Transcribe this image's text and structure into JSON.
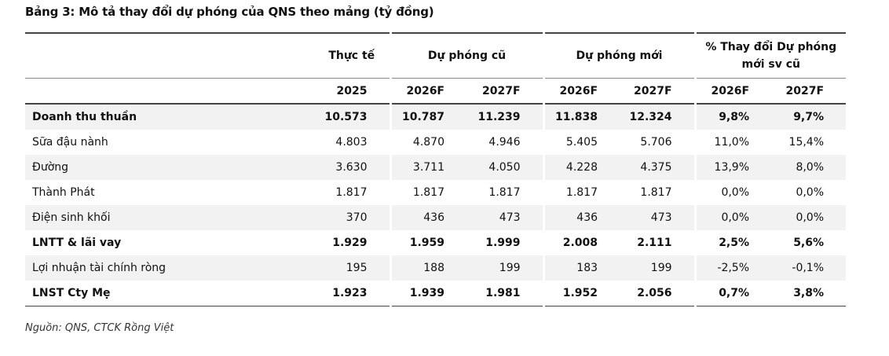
{
  "title": "Bảng 3: Mô tả thay đổi dự phóng của QNS theo mảng (tỷ đồng)",
  "table": {
    "groups": [
      "Thực tế",
      "Dự phóng cũ",
      "Dự phóng mới",
      "% Thay đổi Dự phóng mới sv cũ"
    ],
    "years": [
      "2025",
      "2026F",
      "2027F",
      "2026F",
      "2027F",
      "2026F",
      "2027F"
    ],
    "rows": [
      {
        "label": "Doanh thu thuần",
        "bold": true,
        "values": [
          "10.573",
          "10.787",
          "11.239",
          "11.838",
          "12.324",
          "9,8%",
          "9,7%"
        ]
      },
      {
        "label": "Sữa đậu nành",
        "bold": false,
        "values": [
          "4.803",
          "4.870",
          "4.946",
          "5.405",
          "5.706",
          "11,0%",
          "15,4%"
        ]
      },
      {
        "label": "Đường",
        "bold": false,
        "values": [
          "3.630",
          "3.711",
          "4.050",
          "4.228",
          "4.375",
          "13,9%",
          "8,0%"
        ]
      },
      {
        "label": "Thành Phát",
        "bold": false,
        "values": [
          "1.817",
          "1.817",
          "1.817",
          "1.817",
          "1.817",
          "0,0%",
          "0,0%"
        ]
      },
      {
        "label": "Điện sinh khối",
        "bold": false,
        "values": [
          "370",
          "436",
          "473",
          "436",
          "473",
          "0,0%",
          "0,0%"
        ]
      },
      {
        "label": "LNTT & lãi vay",
        "bold": true,
        "values": [
          "1.929",
          "1.959",
          "1.999",
          "2.008",
          "2.111",
          "2,5%",
          "5,6%"
        ]
      },
      {
        "label": "Lợi nhuận tài chính ròng",
        "bold": false,
        "values": [
          "195",
          "188",
          "199",
          "183",
          "199",
          "-2,5%",
          "-0,1%"
        ]
      },
      {
        "label": "LNST Cty Mẹ",
        "bold": true,
        "values": [
          "1.923",
          "1.939",
          "1.981",
          "1.952",
          "2.056",
          "0,7%",
          "3,8%"
        ]
      }
    ]
  },
  "source": "Nguồn: QNS, CTCK Rồng Việt"
}
